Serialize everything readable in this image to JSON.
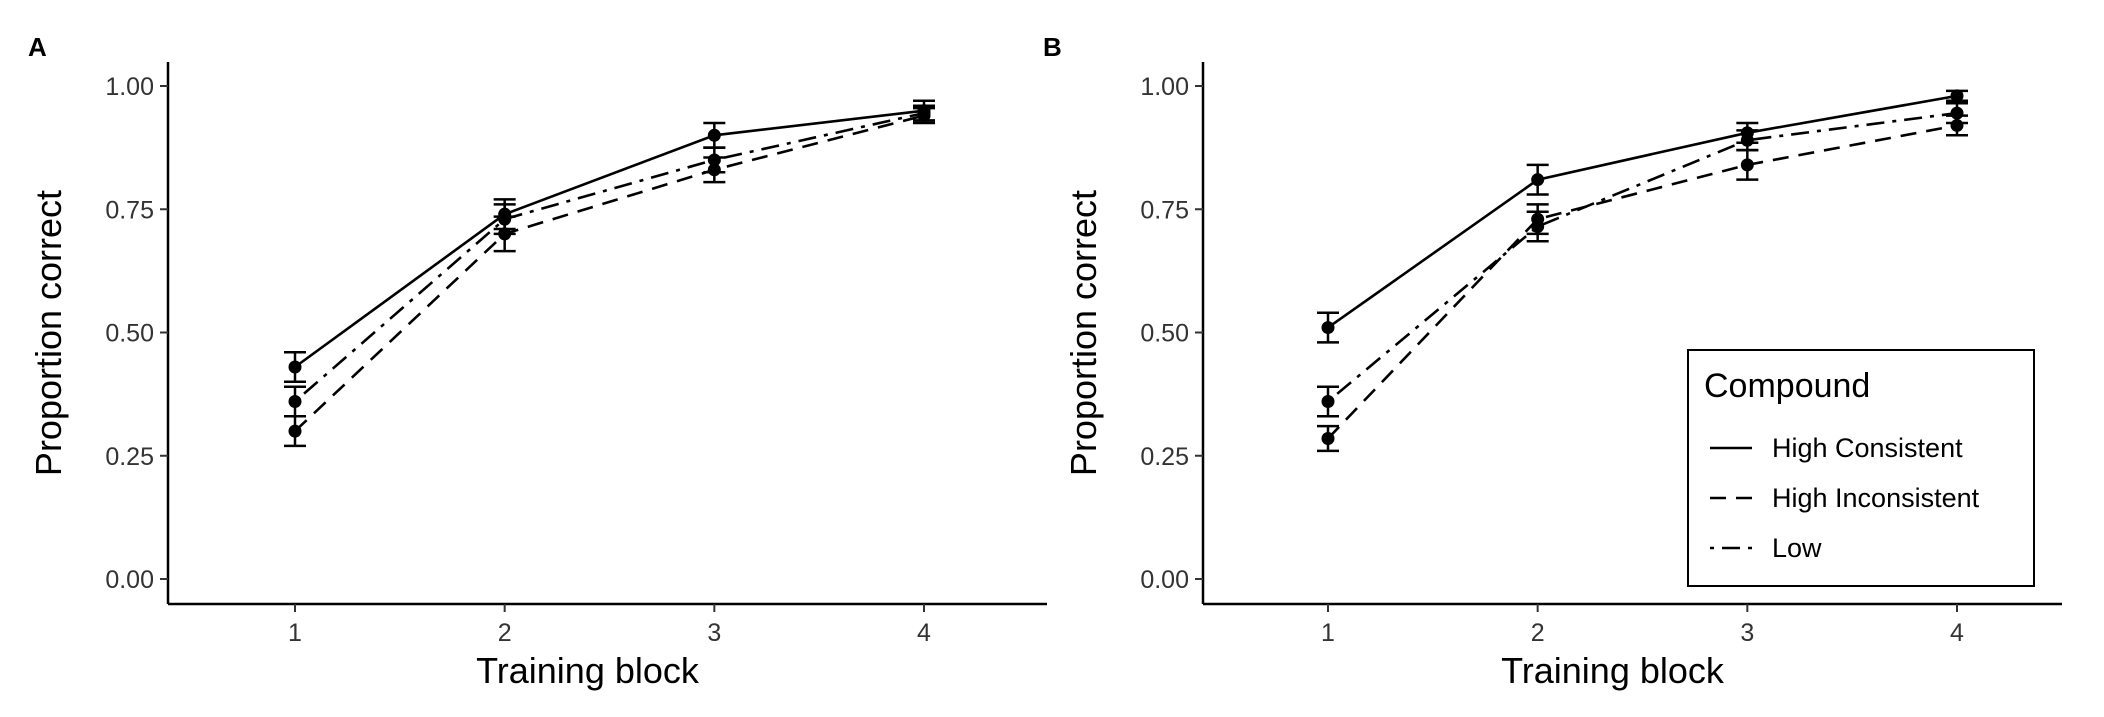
{
  "chart_data": [
    {
      "panel": "A",
      "type": "line",
      "xlabel": "Training block",
      "ylabel": "Proportion correct",
      "x": [
        1,
        2,
        3,
        4
      ],
      "x_ticks": [
        "1",
        "2",
        "3",
        "4"
      ],
      "y_ticks": [
        "0.00",
        "0.25",
        "0.50",
        "0.75",
        "1.00"
      ],
      "ylim": [
        0,
        1
      ],
      "grid": false,
      "series": [
        {
          "name": "High Consistent",
          "dash": "solid",
          "values": [
            0.43,
            0.74,
            0.9,
            0.95
          ],
          "err": [
            0.03,
            0.03,
            0.025,
            0.02
          ]
        },
        {
          "name": "High Inconsistent",
          "dash": "dashed",
          "values": [
            0.3,
            0.7,
            0.83,
            0.94
          ],
          "err": [
            0.03,
            0.035,
            0.025,
            0.015
          ]
        },
        {
          "name": "Low",
          "dash": "dotdash",
          "values": [
            0.36,
            0.73,
            0.85,
            0.945
          ],
          "err": [
            0.03,
            0.03,
            0.025,
            0.015
          ]
        }
      ]
    },
    {
      "panel": "B",
      "type": "line",
      "xlabel": "Training block",
      "ylabel": "Proportion correct",
      "x": [
        1,
        2,
        3,
        4
      ],
      "x_ticks": [
        "1",
        "2",
        "3",
        "4"
      ],
      "y_ticks": [
        "0.00",
        "0.25",
        "0.50",
        "0.75",
        "1.00"
      ],
      "ylim": [
        0,
        1
      ],
      "grid": false,
      "legend": {
        "title": "Compound",
        "position": "bottom-right"
      },
      "series": [
        {
          "name": "High Consistent",
          "dash": "solid",
          "values": [
            0.51,
            0.81,
            0.905,
            0.98
          ],
          "err": [
            0.03,
            0.03,
            0.02,
            0.01
          ]
        },
        {
          "name": "High Inconsistent",
          "dash": "dashed",
          "values": [
            0.285,
            0.73,
            0.84,
            0.92
          ],
          "err": [
            0.025,
            0.03,
            0.03,
            0.02
          ]
        },
        {
          "name": "Low",
          "dash": "dotdash",
          "values": [
            0.36,
            0.715,
            0.89,
            0.945
          ],
          "err": [
            0.03,
            0.03,
            0.02,
            0.02
          ]
        }
      ]
    }
  ]
}
